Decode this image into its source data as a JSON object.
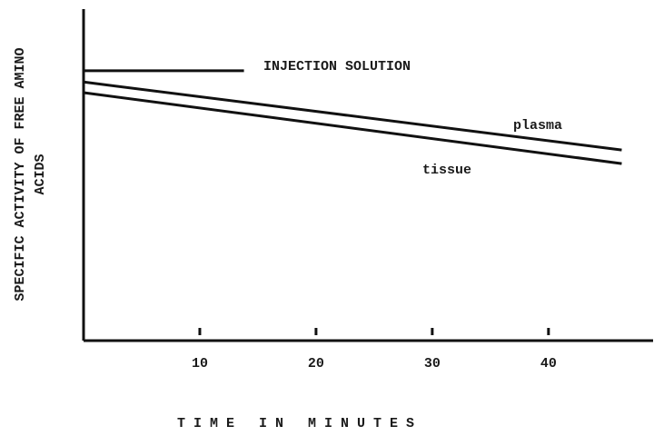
{
  "chart_data": {
    "type": "line",
    "ylabel": [
      "SPECIFIC ACTIVITY OF FREE AMINO",
      "ACIDS"
    ],
    "xlabel": "TIME IN MINUTES",
    "xlim": [
      0,
      49
    ],
    "xticks": [
      10,
      20,
      30,
      40
    ],
    "ylim": [
      0,
      100
    ],
    "series": [
      {
        "name": "INJECTION SOLUTION",
        "color": "#111111",
        "x": [
          0,
          13.8
        ],
        "values": [
          81.4,
          81.4
        ]
      },
      {
        "name": "plasma",
        "color": "#111111",
        "x": [
          0,
          46.3
        ],
        "values": [
          78,
          57.5
        ]
      },
      {
        "name": "tissue",
        "color": "#111111",
        "x": [
          0,
          46.3
        ],
        "values": [
          74.8,
          53.4
        ]
      }
    ]
  }
}
